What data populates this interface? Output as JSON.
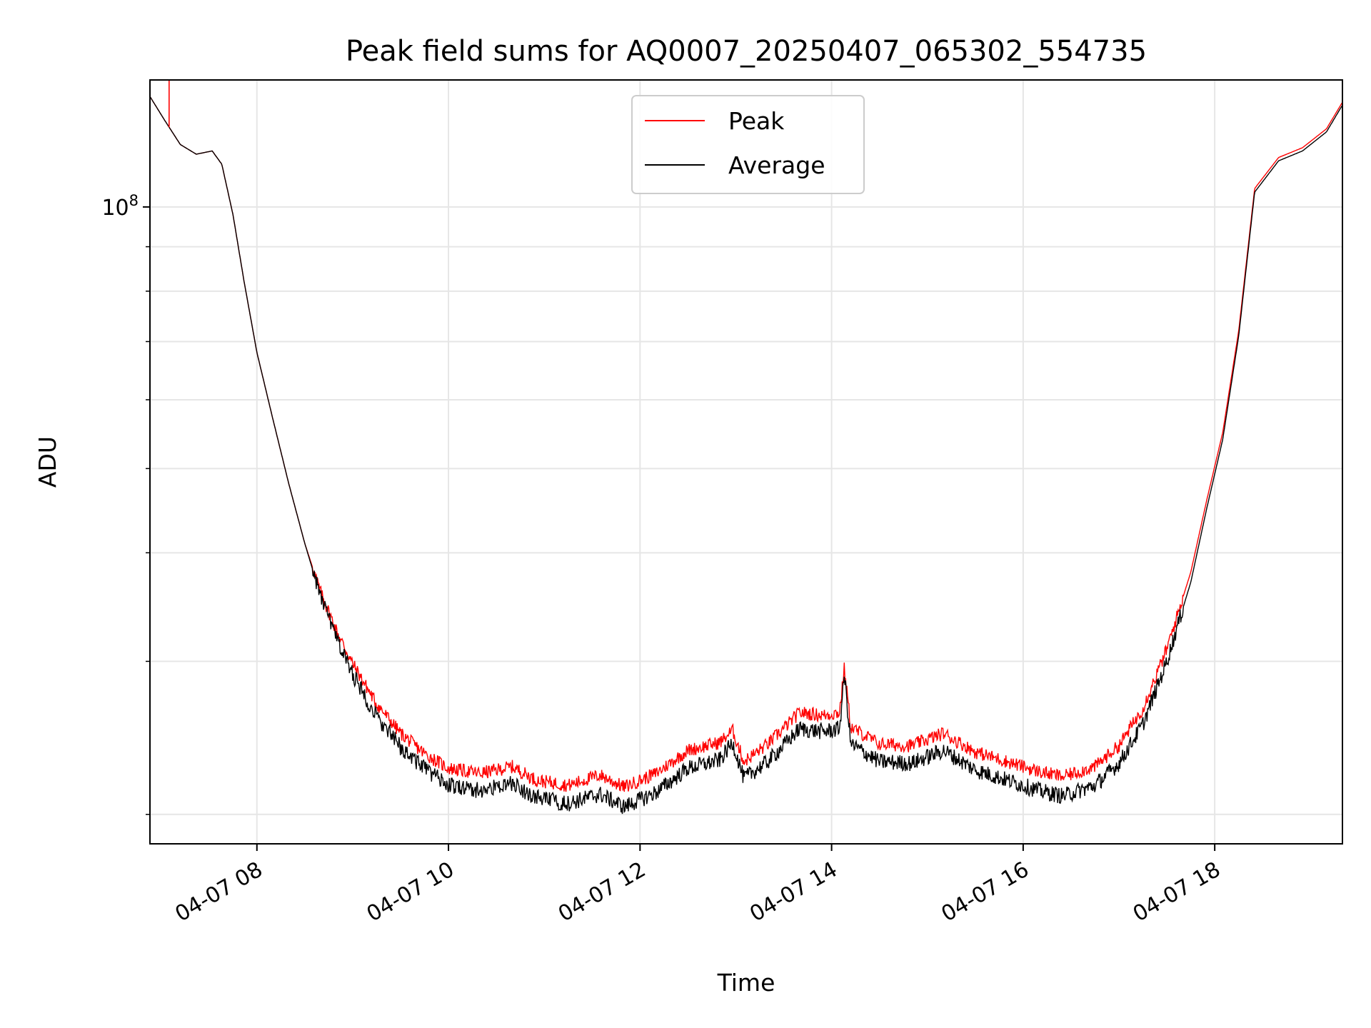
{
  "chart_data": {
    "type": "line",
    "title": "Peak field sums for AQ0007_20250407_065302_554735",
    "xlabel": "Time",
    "ylabel": "ADU",
    "x_start": "2025-04-07 06:53",
    "x_end": "2025-04-07 19:20",
    "xlim": [
      "2025-04-07 06:53",
      "2025-04-07 19:20"
    ],
    "x_ticks": [
      "04-07 08",
      "04-07 10",
      "04-07 12",
      "04-07 14",
      "04-07 16",
      "04-07 18"
    ],
    "y_scale": "log",
    "ylim": [
      18500000,
      140000000
    ],
    "y_major_tick": {
      "value": 100000000,
      "label_base": "10",
      "label_exp": "8"
    },
    "y_minor_ticks": [
      20000000,
      30000000,
      40000000,
      50000000,
      60000000,
      70000000,
      80000000,
      90000000
    ],
    "grid": true,
    "legend": "top-center",
    "series": [
      {
        "name": "Peak",
        "color": "#ff0000",
        "points": [
          [
            "06:53",
            134000000
          ],
          [
            "07:02",
            126000000
          ],
          [
            "07:12",
            118000000
          ],
          [
            "07:22",
            115000000
          ],
          [
            "07:32",
            116000000
          ],
          [
            "07:38",
            112000000
          ],
          [
            "07:45",
            98000000
          ],
          [
            "07:52",
            82000000
          ],
          [
            "08:00",
            68000000
          ],
          [
            "08:10",
            57000000
          ],
          [
            "08:20",
            48000000
          ],
          [
            "08:30",
            41000000
          ],
          [
            "08:40",
            36000000
          ],
          [
            "08:50",
            32500000
          ],
          [
            "09:00",
            29800000
          ],
          [
            "09:15",
            26800000
          ],
          [
            "09:30",
            24800000
          ],
          [
            "09:45",
            23500000
          ],
          [
            "10:00",
            22600000
          ],
          [
            "10:20",
            22300000
          ],
          [
            "10:40",
            22700000
          ],
          [
            "10:55",
            21900000
          ],
          [
            "11:15",
            21600000
          ],
          [
            "11:35",
            22200000
          ],
          [
            "11:50",
            21500000
          ],
          [
            "12:10",
            22300000
          ],
          [
            "12:30",
            23700000
          ],
          [
            "12:50",
            24200000
          ],
          [
            "12:58",
            25000000
          ],
          [
            "13:05",
            23000000
          ],
          [
            "13:20",
            24100000
          ],
          [
            "13:40",
            26200000
          ],
          [
            "13:55",
            26000000
          ],
          [
            "14:05",
            26200000
          ],
          [
            "14:08",
            29500000
          ],
          [
            "14:12",
            25200000
          ],
          [
            "14:30",
            24100000
          ],
          [
            "14:50",
            24000000
          ],
          [
            "15:10",
            24800000
          ],
          [
            "15:30",
            23600000
          ],
          [
            "15:50",
            23000000
          ],
          [
            "16:10",
            22400000
          ],
          [
            "16:25",
            22100000
          ],
          [
            "16:45",
            22700000
          ],
          [
            "17:00",
            24000000
          ],
          [
            "17:15",
            26500000
          ],
          [
            "17:30",
            31000000
          ],
          [
            "17:45",
            38000000
          ],
          [
            "17:55",
            46000000
          ],
          [
            "18:05",
            55000000
          ],
          [
            "18:15",
            72000000
          ],
          [
            "18:25",
            105000000
          ],
          [
            "18:40",
            114000000
          ],
          [
            "18:55",
            117000000
          ],
          [
            "19:10",
            123000000
          ],
          [
            "19:20",
            132000000
          ]
        ]
      },
      {
        "name": "Average",
        "color": "#000000",
        "points": [
          [
            "06:53",
            134000000
          ],
          [
            "07:02",
            126000000
          ],
          [
            "07:12",
            118000000
          ],
          [
            "07:22",
            115000000
          ],
          [
            "07:32",
            116000000
          ],
          [
            "07:38",
            112000000
          ],
          [
            "07:45",
            98000000
          ],
          [
            "07:52",
            82000000
          ],
          [
            "08:00",
            68000000
          ],
          [
            "08:10",
            57000000
          ],
          [
            "08:20",
            48000000
          ],
          [
            "08:30",
            41000000
          ],
          [
            "08:40",
            35600000
          ],
          [
            "08:50",
            31800000
          ],
          [
            "09:00",
            29000000
          ],
          [
            "09:15",
            25900000
          ],
          [
            "09:30",
            23900000
          ],
          [
            "09:45",
            22600000
          ],
          [
            "10:00",
            21600000
          ],
          [
            "10:20",
            21300000
          ],
          [
            "10:40",
            21700000
          ],
          [
            "10:55",
            20900000
          ],
          [
            "11:15",
            20600000
          ],
          [
            "11:35",
            21100000
          ],
          [
            "11:50",
            20400000
          ],
          [
            "12:10",
            21200000
          ],
          [
            "12:30",
            22600000
          ],
          [
            "12:50",
            23100000
          ],
          [
            "12:58",
            24200000
          ],
          [
            "13:05",
            22000000
          ],
          [
            "13:20",
            23000000
          ],
          [
            "13:40",
            25100000
          ],
          [
            "13:55",
            24900000
          ],
          [
            "14:05",
            25100000
          ],
          [
            "14:08",
            29000000
          ],
          [
            "14:12",
            24100000
          ],
          [
            "14:30",
            23000000
          ],
          [
            "14:50",
            22900000
          ],
          [
            "15:10",
            23700000
          ],
          [
            "15:30",
            22500000
          ],
          [
            "15:50",
            21900000
          ],
          [
            "16:10",
            21300000
          ],
          [
            "16:25",
            21000000
          ],
          [
            "16:45",
            21600000
          ],
          [
            "17:00",
            22900000
          ],
          [
            "17:15",
            25400000
          ],
          [
            "17:30",
            30000000
          ],
          [
            "17:45",
            37000000
          ],
          [
            "17:55",
            45000000
          ],
          [
            "18:05",
            54000000
          ],
          [
            "18:15",
            71000000
          ],
          [
            "18:25",
            104000000
          ],
          [
            "18:40",
            113000000
          ],
          [
            "18:55",
            116000000
          ],
          [
            "19:10",
            122000000
          ],
          [
            "19:20",
            131000000
          ]
        ]
      }
    ],
    "annotations": [
      {
        "series": "Peak",
        "time": "07:05",
        "value": 140000000,
        "note": "spike"
      }
    ]
  }
}
